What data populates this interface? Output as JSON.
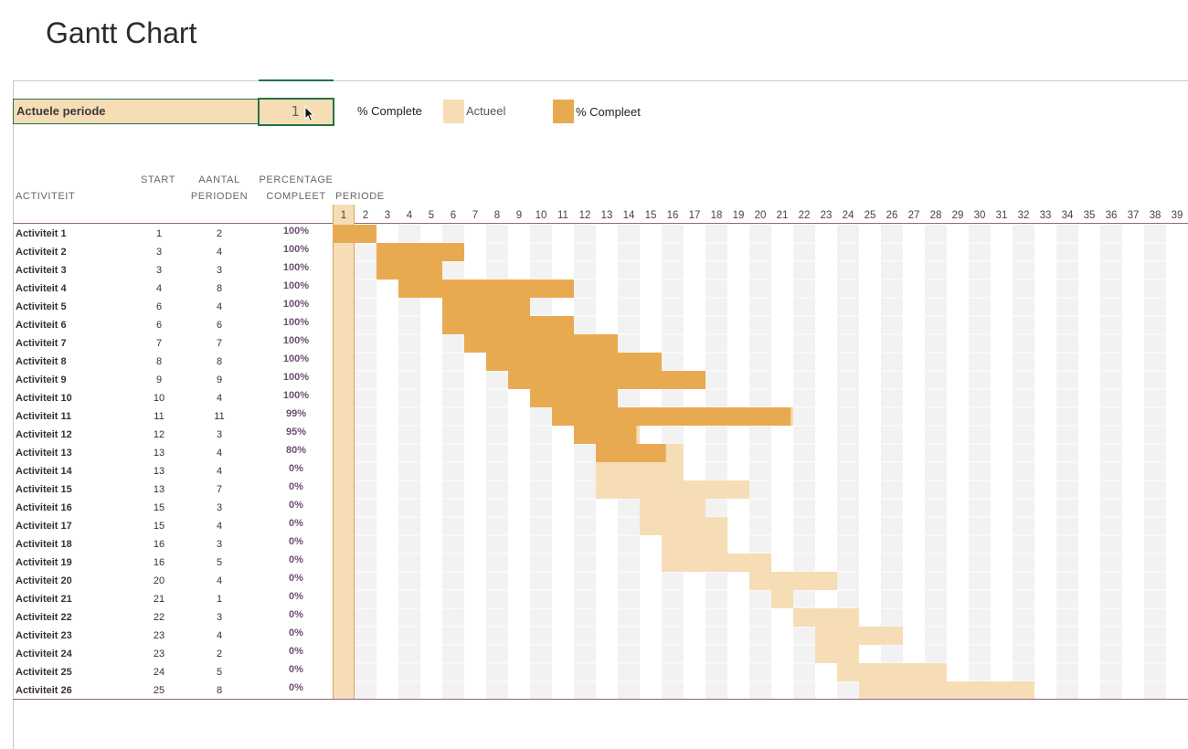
{
  "title": "Gantt Chart",
  "period_selector": {
    "label": "Actuele periode",
    "value": "1"
  },
  "legend": {
    "complete_label": "% Complete",
    "actueel_label": "Actueel",
    "compleet_label": "% Compleet",
    "actueel_color": "#f6ddb6",
    "compleet_color": "#e8aa50"
  },
  "headers": {
    "activity": "ACTIVITEIT",
    "start": "START",
    "duration_line1": "AANTAL",
    "duration_line2": "PERIODEN",
    "percent_line1": "PERCENTAGE",
    "percent_line2": "COMPLEET",
    "period": "PERIODE"
  },
  "periods": [
    "1",
    "2",
    "3",
    "4",
    "5",
    "6",
    "7",
    "8",
    "9",
    "10",
    "11",
    "12",
    "13",
    "14",
    "15",
    "16",
    "17",
    "18",
    "19",
    "20",
    "21",
    "22",
    "23",
    "24",
    "25",
    "26",
    "27",
    "28",
    "29",
    "30",
    "31",
    "32",
    "33",
    "34",
    "35",
    "36",
    "37",
    "38",
    "39"
  ],
  "activities": [
    {
      "name": "Activiteit 1",
      "start": 1,
      "duration": 2,
      "percent": "100%",
      "pct": 1.0
    },
    {
      "name": "Activiteit 2",
      "start": 3,
      "duration": 4,
      "percent": "100%",
      "pct": 1.0
    },
    {
      "name": "Activiteit 3",
      "start": 3,
      "duration": 3,
      "percent": "100%",
      "pct": 1.0
    },
    {
      "name": "Activiteit 4",
      "start": 4,
      "duration": 8,
      "percent": "100%",
      "pct": 1.0
    },
    {
      "name": "Activiteit 5",
      "start": 6,
      "duration": 4,
      "percent": "100%",
      "pct": 1.0
    },
    {
      "name": "Activiteit 6",
      "start": 6,
      "duration": 6,
      "percent": "100%",
      "pct": 1.0
    },
    {
      "name": "Activiteit 7",
      "start": 7,
      "duration": 7,
      "percent": "100%",
      "pct": 1.0
    },
    {
      "name": "Activiteit 8",
      "start": 8,
      "duration": 8,
      "percent": "100%",
      "pct": 1.0
    },
    {
      "name": "Activiteit 9",
      "start": 9,
      "duration": 9,
      "percent": "100%",
      "pct": 1.0
    },
    {
      "name": "Activiteit 10",
      "start": 10,
      "duration": 4,
      "percent": "100%",
      "pct": 1.0
    },
    {
      "name": "Activiteit 11",
      "start": 11,
      "duration": 11,
      "percent": "99%",
      "pct": 0.99
    },
    {
      "name": "Activiteit 12",
      "start": 12,
      "duration": 3,
      "percent": "95%",
      "pct": 0.95
    },
    {
      "name": "Activiteit 13",
      "start": 13,
      "duration": 4,
      "percent": "80%",
      "pct": 0.8
    },
    {
      "name": "Activiteit 14",
      "start": 13,
      "duration": 4,
      "percent": "0%",
      "pct": 0
    },
    {
      "name": "Activiteit 15",
      "start": 13,
      "duration": 7,
      "percent": "0%",
      "pct": 0
    },
    {
      "name": "Activiteit 16",
      "start": 15,
      "duration": 3,
      "percent": "0%",
      "pct": 0
    },
    {
      "name": "Activiteit 17",
      "start": 15,
      "duration": 4,
      "percent": "0%",
      "pct": 0
    },
    {
      "name": "Activiteit 18",
      "start": 16,
      "duration": 3,
      "percent": "0%",
      "pct": 0
    },
    {
      "name": "Activiteit 19",
      "start": 16,
      "duration": 5,
      "percent": "0%",
      "pct": 0
    },
    {
      "name": "Activiteit 20",
      "start": 20,
      "duration": 4,
      "percent": "0%",
      "pct": 0
    },
    {
      "name": "Activiteit 21",
      "start": 21,
      "duration": 1,
      "percent": "0%",
      "pct": 0
    },
    {
      "name": "Activiteit 22",
      "start": 22,
      "duration": 3,
      "percent": "0%",
      "pct": 0
    },
    {
      "name": "Activiteit 23",
      "start": 23,
      "duration": 4,
      "percent": "0%",
      "pct": 0
    },
    {
      "name": "Activiteit 24",
      "start": 23,
      "duration": 2,
      "percent": "0%",
      "pct": 0
    },
    {
      "name": "Activiteit 25",
      "start": 24,
      "duration": 5,
      "percent": "0%",
      "pct": 0
    },
    {
      "name": "Activiteit 26",
      "start": 25,
      "duration": 8,
      "percent": "0%",
      "pct": 0
    }
  ],
  "chart_data": {
    "type": "gantt",
    "current_period": 1,
    "x": [
      "Activiteit 1",
      "Activiteit 2",
      "Activiteit 3",
      "Activiteit 4",
      "Activiteit 5",
      "Activiteit 6",
      "Activiteit 7",
      "Activiteit 8",
      "Activiteit 9",
      "Activiteit 10",
      "Activiteit 11",
      "Activiteit 12",
      "Activiteit 13",
      "Activiteit 14",
      "Activiteit 15",
      "Activiteit 16",
      "Activiteit 17",
      "Activiteit 18",
      "Activiteit 19",
      "Activiteit 20",
      "Activiteit 21",
      "Activiteit 22",
      "Activiteit 23",
      "Activiteit 24",
      "Activiteit 25",
      "Activiteit 26"
    ],
    "start": [
      1,
      3,
      3,
      4,
      6,
      6,
      7,
      8,
      9,
      10,
      11,
      12,
      13,
      13,
      13,
      15,
      15,
      16,
      16,
      20,
      21,
      22,
      23,
      23,
      24,
      25
    ],
    "duration": [
      2,
      4,
      3,
      8,
      4,
      6,
      7,
      8,
      9,
      4,
      11,
      3,
      4,
      4,
      7,
      3,
      4,
      3,
      5,
      4,
      1,
      3,
      4,
      2,
      5,
      8
    ],
    "percent_complete": [
      100,
      100,
      100,
      100,
      100,
      100,
      100,
      100,
      100,
      100,
      99,
      95,
      80,
      0,
      0,
      0,
      0,
      0,
      0,
      0,
      0,
      0,
      0,
      0,
      0,
      0
    ],
    "xlim": [
      1,
      39
    ],
    "series": [
      {
        "name": "Actueel"
      },
      {
        "name": "% Compleet"
      }
    ]
  }
}
